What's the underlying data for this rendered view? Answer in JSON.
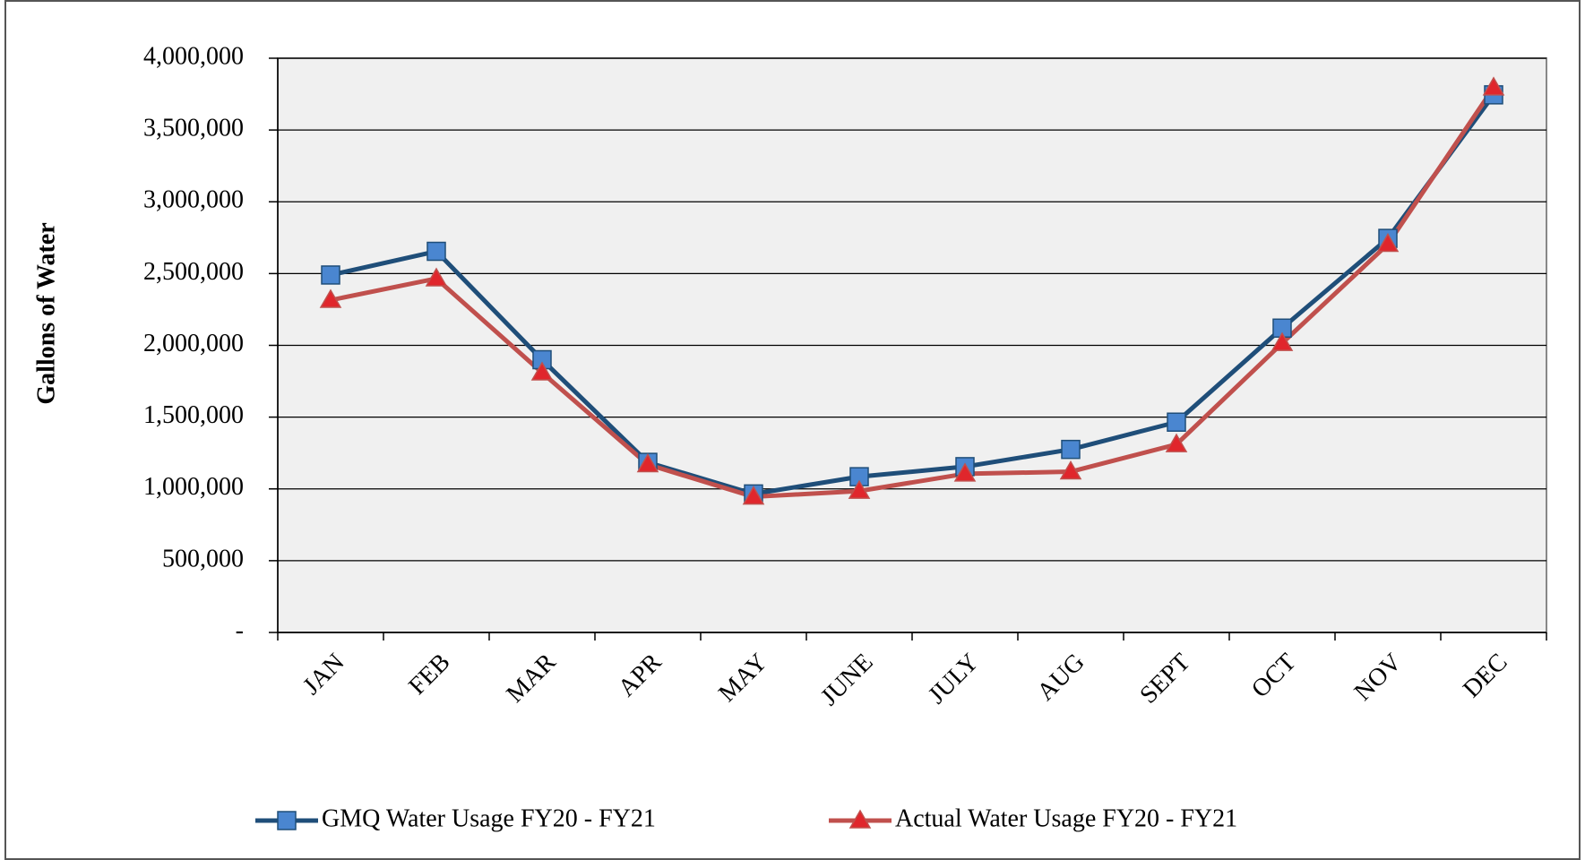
{
  "chart_data": {
    "type": "line",
    "y_label": "Gallons of Water",
    "categories": [
      "JAN",
      "FEB",
      "MAR",
      "APR",
      "MAY",
      "JUNE",
      "JULY",
      "AUG",
      "SEPT",
      "OCT",
      "NOV",
      "DEC"
    ],
    "series": [
      {
        "name": "GMQ Water Usage FY20 - FY21",
        "color": "#1f4e79",
        "marker_color": "#4a86d0",
        "marker": "square",
        "values": [
          2490000,
          2655000,
          1900000,
          1185000,
          965000,
          1085000,
          1155000,
          1275000,
          1465000,
          2120000,
          2745000,
          3745000
        ]
      },
      {
        "name": "Actual Water Usage FY20 - FY21",
        "color": "#c0504d",
        "marker_color": "#e0262c",
        "marker": "triangle",
        "values": [
          2315000,
          2465000,
          1810000,
          1170000,
          945000,
          985000,
          1105000,
          1120000,
          1310000,
          2015000,
          2705000,
          3795000
        ]
      }
    ],
    "ylim": [
      0,
      4000000
    ],
    "yticks": [
      {
        "value": 0,
        "label": "-"
      },
      {
        "value": 500000,
        "label": "500,000"
      },
      {
        "value": 1000000,
        "label": "1,000,000"
      },
      {
        "value": 1500000,
        "label": "1,500,000"
      },
      {
        "value": 2000000,
        "label": "2,000,000"
      },
      {
        "value": 2500000,
        "label": "2,500,000"
      },
      {
        "value": 3000000,
        "label": "3,000,000"
      },
      {
        "value": 3500000,
        "label": "3,500,000"
      },
      {
        "value": 4000000,
        "label": "4,000,000"
      }
    ],
    "grid": true,
    "legend": "bottom"
  }
}
